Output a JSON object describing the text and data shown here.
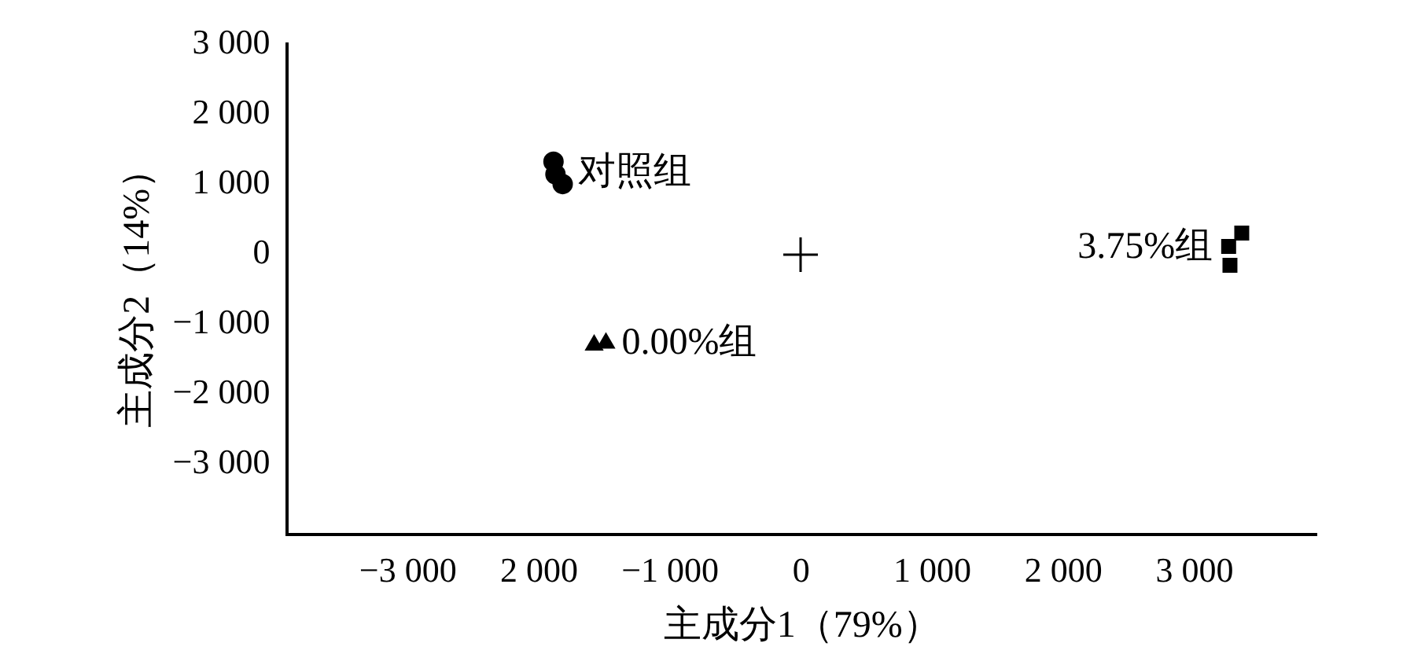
{
  "chart_data": {
    "type": "scatter",
    "xlabel": "主成分1（79%）",
    "ylabel": "主成分2（14%）",
    "xlim": [
      -3920,
      3930
    ],
    "ylim": [
      -4000,
      3000
    ],
    "xticks": [
      {
        "value": -3000,
        "label": "−3 000"
      },
      {
        "value": -2000,
        "label": "2 000"
      },
      {
        "value": -1000,
        "label": "−1 000"
      },
      0,
      {
        "value": 1000,
        "label": "1 000"
      },
      {
        "value": 2000,
        "label": "2 000"
      },
      {
        "value": 3000,
        "label": "3 000"
      }
    ],
    "yticks": [
      {
        "value": -3000,
        "label": "−3 000"
      },
      {
        "value": -2000,
        "label": "−2 000"
      },
      {
        "value": -1000,
        "label": "−1 000"
      },
      0,
      {
        "value": 1000,
        "label": "1 000"
      },
      {
        "value": 2000,
        "label": "2 000"
      },
      {
        "value": 3000,
        "label": "3 000"
      }
    ],
    "grid": false,
    "legend": false,
    "series": [
      {
        "name": "对照组",
        "color": "#000000",
        "marker": "circle",
        "x": [
          -1890,
          -1875,
          -1820
        ],
        "values": [
          1320,
          1140,
          1000
        ]
      },
      {
        "name": "0.00%组",
        "color": "#000000",
        "marker": "triangle",
        "x": [
          -1580,
          -1490
        ],
        "values": [
          -1300,
          -1270
        ]
      },
      {
        "name": "3.75%组",
        "color": "#000000",
        "marker": "square",
        "x": [
          3360,
          3260,
          3270
        ],
        "values": [
          300,
          110,
          -160
        ]
      }
    ]
  }
}
